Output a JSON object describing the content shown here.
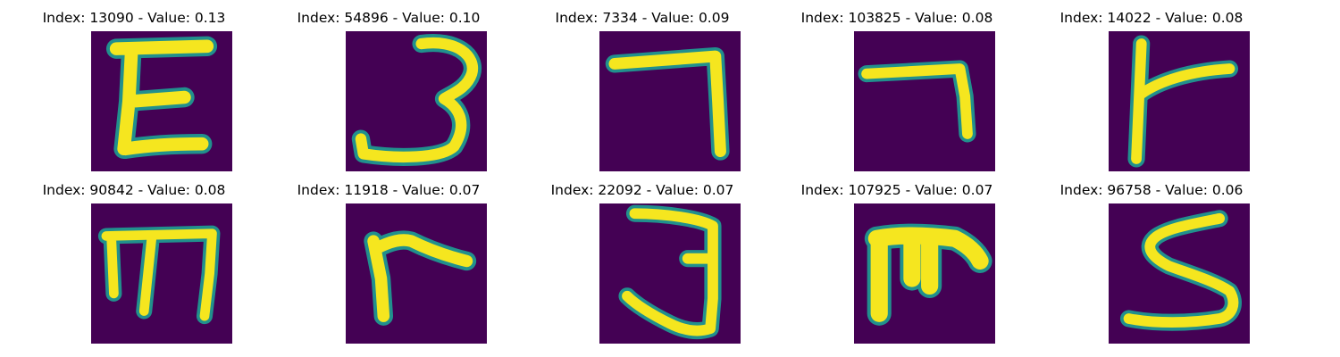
{
  "colors": {
    "background": "#440154",
    "stroke": "#f5e61f",
    "edge": "#21908d"
  },
  "panels": [
    {
      "title": "Index: 13090 - Value: 0.13",
      "glyph": "E"
    },
    {
      "title": "Index: 54896 - Value: 0.10",
      "glyph": "3"
    },
    {
      "title": "Index: 7334 - Value: 0.09",
      "glyph": "7"
    },
    {
      "title": "Index: 103825 - Value: 0.08",
      "glyph": "7"
    },
    {
      "title": "Index: 14022 - Value: 0.08",
      "glyph": "r"
    },
    {
      "title": "Index: 90842 - Value: 0.08",
      "glyph": "m"
    },
    {
      "title": "Index: 11918 - Value: 0.07",
      "glyph": "r"
    },
    {
      "title": "Index: 22092 - Value: 0.07",
      "glyph": "3"
    },
    {
      "title": "Index: 107925 - Value: 0.07",
      "glyph": "m"
    },
    {
      "title": "Index: 96758 - Value: 0.06",
      "glyph": "S"
    }
  ]
}
